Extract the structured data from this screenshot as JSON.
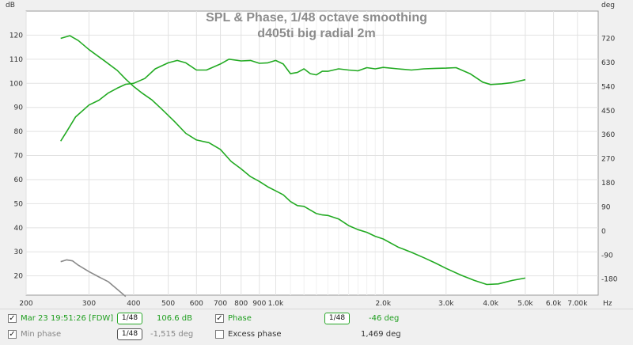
{
  "chart_data": {
    "type": "line",
    "title": "SPL & Phase, 1/48 octave smoothing",
    "subtitle": "d405ti big radial 2m",
    "x_scale": "log",
    "xlim": [
      200,
      8000
    ],
    "x_ticks": [
      {
        "v": 200,
        "label": "200"
      },
      {
        "v": 300,
        "label": "300"
      },
      {
        "v": 400,
        "label": "400"
      },
      {
        "v": 500,
        "label": "500"
      },
      {
        "v": 600,
        "label": "600"
      },
      {
        "v": 700,
        "label": "700"
      },
      {
        "v": 800,
        "label": "800"
      },
      {
        "v": 900,
        "label": "900"
      },
      {
        "v": 1000,
        "label": "1.0k"
      },
      {
        "v": 2000,
        "label": "2.0k"
      },
      {
        "v": 3000,
        "label": "3.0k"
      },
      {
        "v": 4000,
        "label": "4.0k"
      },
      {
        "v": 5000,
        "label": "5.0k"
      },
      {
        "v": 6000,
        "label": "6.0k"
      },
      {
        "v": 7000,
        "label": "7.00k"
      }
    ],
    "x_unit": "Hz",
    "y_left": {
      "unit": "dB",
      "lim": [
        12,
        130
      ],
      "ticks": [
        20,
        30,
        40,
        50,
        60,
        70,
        80,
        90,
        100,
        110,
        120
      ]
    },
    "y_right": {
      "unit": "deg",
      "lim": [
        -240,
        822
      ],
      "ticks": [
        -180,
        -90,
        0,
        90,
        180,
        270,
        360,
        450,
        540,
        630,
        720
      ]
    },
    "grid": true,
    "series": [
      {
        "name": "Mar 23 19:51:26 [FDW]",
        "axis": "left",
        "color": "#22aa22",
        "points": [
          [
            250,
            76
          ],
          [
            260,
            80
          ],
          [
            275,
            86
          ],
          [
            300,
            91
          ],
          [
            320,
            93
          ],
          [
            340,
            96
          ],
          [
            360,
            98
          ],
          [
            380,
            99.6
          ],
          [
            400,
            100
          ],
          [
            430,
            102
          ],
          [
            460,
            106
          ],
          [
            500,
            108.5
          ],
          [
            530,
            109.5
          ],
          [
            560,
            108.5
          ],
          [
            600,
            105.5
          ],
          [
            640,
            105.5
          ],
          [
            700,
            108
          ],
          [
            740,
            110
          ],
          [
            800,
            109.3
          ],
          [
            850,
            109.5
          ],
          [
            900,
            108.3
          ],
          [
            950,
            108.5
          ],
          [
            1000,
            109.5
          ],
          [
            1050,
            108
          ],
          [
            1100,
            104
          ],
          [
            1150,
            104.5
          ],
          [
            1200,
            106
          ],
          [
            1250,
            104
          ],
          [
            1300,
            103.5
          ],
          [
            1350,
            105
          ],
          [
            1400,
            105
          ],
          [
            1500,
            106
          ],
          [
            1600,
            105.5
          ],
          [
            1700,
            105.2
          ],
          [
            1800,
            106.5
          ],
          [
            1900,
            106
          ],
          [
            2000,
            106.6
          ],
          [
            2200,
            106
          ],
          [
            2400,
            105.5
          ],
          [
            2600,
            106
          ],
          [
            2800,
            106.2
          ],
          [
            3000,
            106.3
          ],
          [
            3200,
            106.5
          ],
          [
            3500,
            104
          ],
          [
            3800,
            100.5
          ],
          [
            4000,
            99.5
          ],
          [
            4300,
            99.8
          ],
          [
            4600,
            100.3
          ],
          [
            5000,
            101.5
          ]
        ]
      },
      {
        "name": "Phase",
        "axis": "right",
        "color": "#22aa22",
        "points": [
          [
            250,
            720
          ],
          [
            265,
            730
          ],
          [
            280,
            712
          ],
          [
            300,
            678
          ],
          [
            330,
            638
          ],
          [
            360,
            600
          ],
          [
            380,
            568
          ],
          [
            400,
            540
          ],
          [
            420,
            518
          ],
          [
            450,
            490
          ],
          [
            480,
            455
          ],
          [
            520,
            410
          ],
          [
            560,
            365
          ],
          [
            600,
            340
          ],
          [
            650,
            330
          ],
          [
            700,
            305
          ],
          [
            750,
            260
          ],
          [
            800,
            232
          ],
          [
            850,
            203
          ],
          [
            900,
            185
          ],
          [
            950,
            165
          ],
          [
            1000,
            150
          ],
          [
            1050,
            135
          ],
          [
            1100,
            110
          ],
          [
            1150,
            95
          ],
          [
            1200,
            92
          ],
          [
            1300,
            65
          ],
          [
            1350,
            60
          ],
          [
            1400,
            58
          ],
          [
            1500,
            45
          ],
          [
            1600,
            20
          ],
          [
            1700,
            5
          ],
          [
            1800,
            -5
          ],
          [
            1900,
            -20
          ],
          [
            2000,
            -30
          ],
          [
            2200,
            -60
          ],
          [
            2400,
            -80
          ],
          [
            2600,
            -100
          ],
          [
            2800,
            -120
          ],
          [
            3000,
            -140
          ],
          [
            3300,
            -165
          ],
          [
            3600,
            -185
          ],
          [
            3900,
            -200
          ],
          [
            4200,
            -198
          ],
          [
            4600,
            -185
          ],
          [
            5000,
            -176
          ]
        ]
      },
      {
        "name": "Min phase",
        "axis": "right",
        "color": "#8a8a8a",
        "points": [
          [
            250,
            -115
          ],
          [
            260,
            -108
          ],
          [
            270,
            -112
          ],
          [
            280,
            -128
          ],
          [
            300,
            -152
          ],
          [
            320,
            -172
          ],
          [
            340,
            -190
          ],
          [
            360,
            -218
          ],
          [
            380,
            -245
          ]
        ]
      }
    ]
  },
  "legend": {
    "row1": {
      "checked": "✓",
      "measurement_name": "Mar 23 19:51:26 [FDW]",
      "smoothing": "1/48",
      "spl_value": "106.6 dB",
      "phase_label": "Phase",
      "phase_smoothing": "1/48",
      "phase_value": "-46 deg"
    },
    "row2": {
      "min_phase_label": "Min phase",
      "min_phase_smoothing": "1/48",
      "min_phase_value": "-1,515 deg",
      "excess_phase_label": "Excess phase",
      "excess_phase_value": "1,469 deg"
    }
  }
}
